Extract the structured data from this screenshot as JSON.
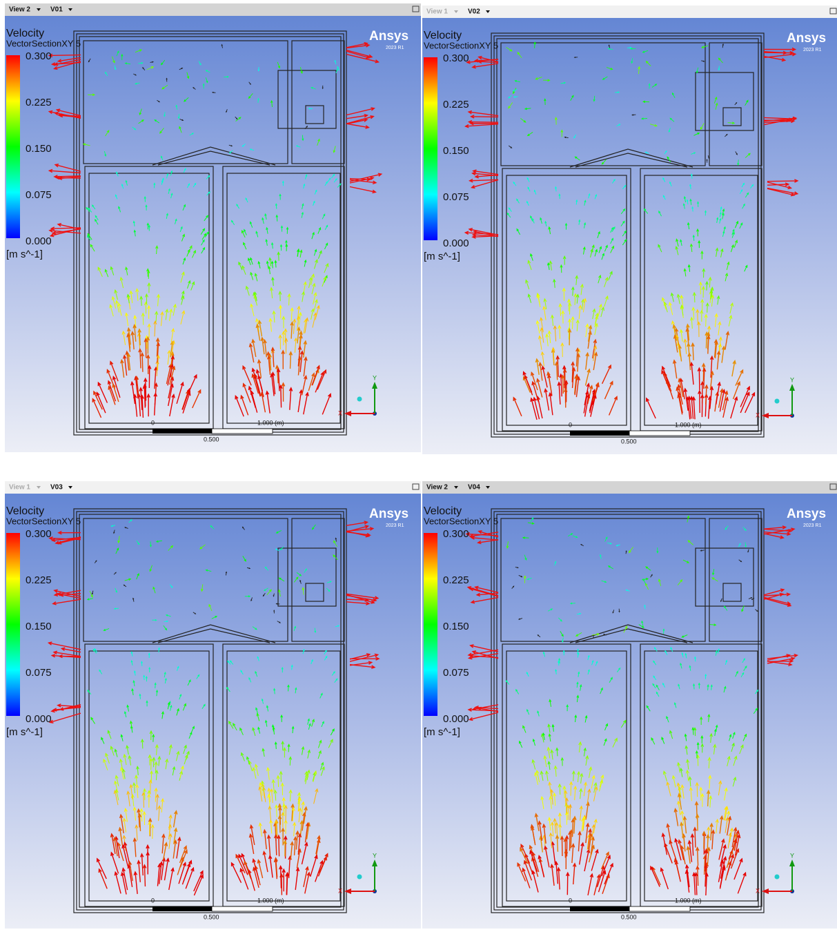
{
  "panels": [
    {
      "view": "View 2",
      "viewport": "V01",
      "legend": {
        "title": "Velocity",
        "subtitle": "VectorSectionXY 5",
        "ticks": [
          "0.300",
          "0.225",
          "0.150",
          "0.075",
          "0.000"
        ],
        "unit": "[m s^-1]"
      },
      "logo": "Ansys",
      "version": "2023 R1",
      "scale": {
        "start": "0",
        "mid": "0.500",
        "end": "1.000 (m)"
      },
      "axes": {
        "y": "Y",
        "x": "X"
      }
    },
    {
      "view": "View 1",
      "viewport": "V02",
      "legend": {
        "title": "Velocity",
        "subtitle": "VectorSectionXY 5",
        "ticks": [
          "0.300",
          "0.225",
          "0.150",
          "0.075",
          "0.000"
        ],
        "unit": "[m s^-1]"
      },
      "logo": "Ansys",
      "version": "2023 R1",
      "scale": {
        "start": "0",
        "mid": "0.500",
        "end": "1.000 (m)"
      },
      "axes": {
        "y": "Y",
        "x": "X"
      }
    },
    {
      "view": "View 1",
      "viewport": "V03",
      "legend": {
        "title": "Velocity",
        "subtitle": "VectorSectionXY 5",
        "ticks": [
          "0.300",
          "0.225",
          "0.150",
          "0.075",
          "0.000"
        ],
        "unit": "[m s^-1]"
      },
      "logo": "Ansys",
      "version": "2023 R1",
      "scale": {
        "start": "0",
        "mid": "0.500",
        "end": "1.000 (m)"
      },
      "axes": {
        "y": "Y",
        "x": "X"
      }
    },
    {
      "view": "View 2",
      "viewport": "V04",
      "legend": {
        "title": "Velocity",
        "subtitle": "VectorSectionXY 5",
        "ticks": [
          "0.300",
          "0.225",
          "0.150",
          "0.075",
          "0.000"
        ],
        "unit": "[m s^-1]"
      },
      "logo": "Ansys",
      "version": "2023 R1",
      "scale": {
        "start": "0",
        "mid": "0.500",
        "end": "1.000 (m)"
      },
      "axes": {
        "y": "Y",
        "x": "X"
      }
    }
  ]
}
